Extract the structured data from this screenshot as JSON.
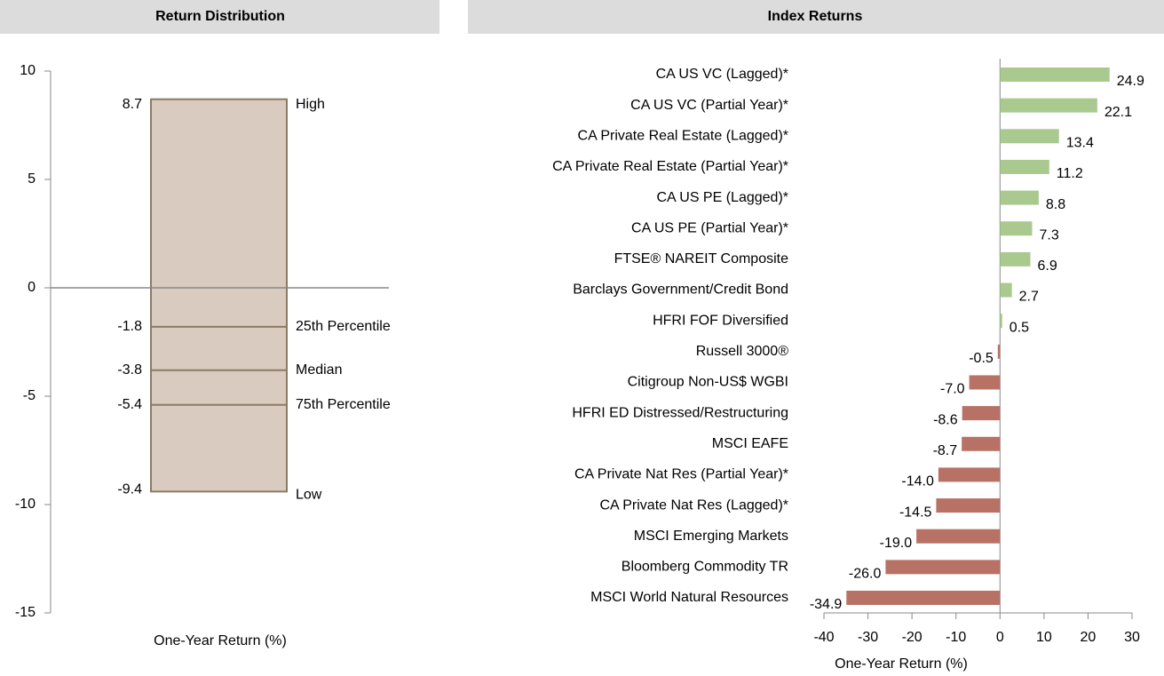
{
  "chart_data": [
    {
      "type": "distribution",
      "title": "Return Distribution",
      "x_label": "One-Year Return (%)",
      "categories": [
        "High",
        "25th Percentile",
        "Median",
        "75th Percentile",
        "Low"
      ],
      "values": [
        8.7,
        -1.8,
        -3.8,
        -5.4,
        -9.4
      ],
      "ylim": [
        -15,
        10
      ],
      "yticks": [
        -15,
        -10,
        -5,
        0,
        5,
        10
      ],
      "color": "#d9cbbf",
      "edge_color": "#8b7a66"
    },
    {
      "type": "barh",
      "title": "Index Returns",
      "x_label": "One-Year Return (%)",
      "categories": [
        "CA US VC (Lagged)*",
        "CA US VC (Partial Year)*",
        "CA Private Real Estate (Lagged)*",
        "CA Private Real Estate (Partial Year)*",
        "CA US PE (Lagged)*",
        "CA US PE (Partial Year)*",
        "FTSE® NAREIT Composite",
        "Barclays Government/Credit Bond",
        "HFRI FOF Diversified",
        "Russell 3000®",
        "Citigroup Non-US$ WGBI",
        "HFRI ED Distressed/Restructuring",
        "MSCI EAFE",
        "CA Private Nat Res (Partial Year)*",
        "CA Private Nat Res (Lagged)*",
        "MSCI Emerging Markets",
        "Bloomberg Commodity TR",
        "MSCI World Natural Resources"
      ],
      "values": [
        24.9,
        22.1,
        13.4,
        11.2,
        8.8,
        7.3,
        6.9,
        2.7,
        0.5,
        -0.5,
        -7,
        -8.6,
        -8.7,
        -14,
        -14.5,
        -19,
        -26,
        -34.9
      ],
      "value_labels": [
        "24.9",
        "22.1",
        "13.4",
        "11.2",
        "8.8",
        "7.3",
        "6.9",
        "2.7",
        "0.5",
        "-0.5",
        "-7.0",
        "-8.6",
        "-8.7",
        "-14.0",
        "-14.5",
        "-19.0",
        "-26.0",
        "-34.9"
      ],
      "xlim": [
        -40,
        30
      ],
      "xticks": [
        -40,
        -30,
        -20,
        -10,
        0,
        10,
        20,
        30
      ],
      "positive_color": "#a9c98f",
      "negative_color": "#b87265"
    }
  ]
}
